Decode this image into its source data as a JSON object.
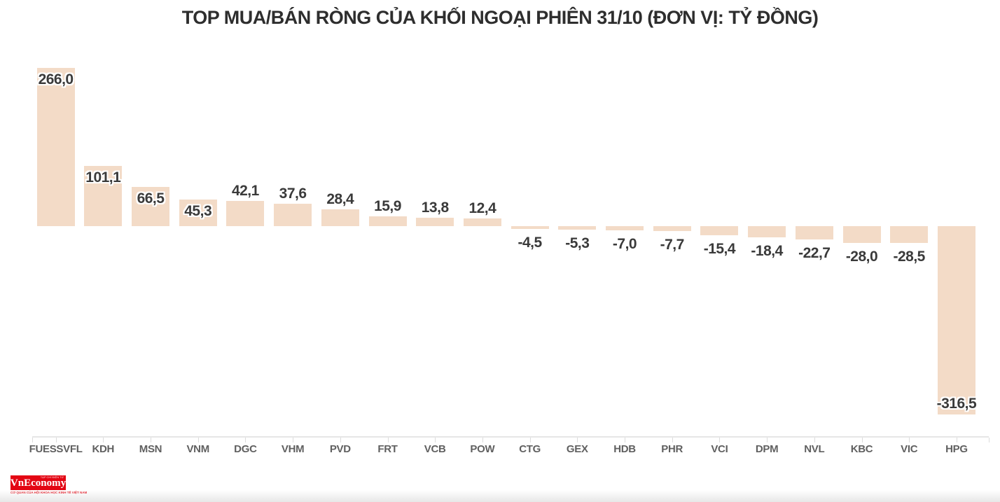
{
  "title": "TOP MUA/BÁN RÒNG CỦA KHỐI NGOẠI PHIÊN 31/10 (ĐƠN VỊ: TỶ ĐỒNG)",
  "chart_data": {
    "type": "bar",
    "orientation": "vertical",
    "title": "TOP MUA/BÁN RÒNG CỦA KHỐI NGOẠI PHIÊN 31/10 (ĐƠN VỊ: TỶ ĐỒNG)",
    "categories": [
      "FUESSVFL",
      "KDH",
      "MSN",
      "VNM",
      "DGC",
      "VHM",
      "PVD",
      "FRT",
      "VCB",
      "POW",
      "CTG",
      "GEX",
      "HDB",
      "PHR",
      "VCI",
      "DPM",
      "NVL",
      "KBC",
      "VIC",
      "HPG"
    ],
    "values": [
      266.0,
      101.1,
      66.5,
      45.3,
      42.1,
      37.6,
      28.4,
      15.9,
      13.8,
      12.4,
      -4.5,
      -5.3,
      -7.0,
      -7.7,
      -15.4,
      -18.4,
      -22.7,
      -28.0,
      -28.5,
      -316.5
    ],
    "value_labels": [
      "266,0",
      "101,1",
      "66,5",
      "45,3",
      "42,1",
      "37,6",
      "28,4",
      "15,9",
      "13,8",
      "12,4",
      "-4,5",
      "-5,3",
      "-7,0",
      "-7,7",
      "-15,4",
      "-18,4",
      "-22,7",
      "-28,0",
      "-28,5",
      "-316,5"
    ],
    "unit": "tỷ đồng",
    "decimal_separator": ",",
    "ylim": [
      -330,
      280
    ],
    "grid": false,
    "legend": false,
    "bar_color": "#f3dbc7",
    "value_label_color": "#3a3a3a",
    "category_label_color": "#606060",
    "axis_color": "#e6e6e6"
  },
  "footer": {
    "logo": {
      "brand": "VnEconomy",
      "microtext": "TẠP CHÍ ĐIỆN TỬ",
      "tagline": "CƠ QUAN CỦA HỘI KHOA HỌC KINH TẾ VIỆT NAM",
      "background_color": "#e30613",
      "text_color": "#ffffff"
    }
  }
}
